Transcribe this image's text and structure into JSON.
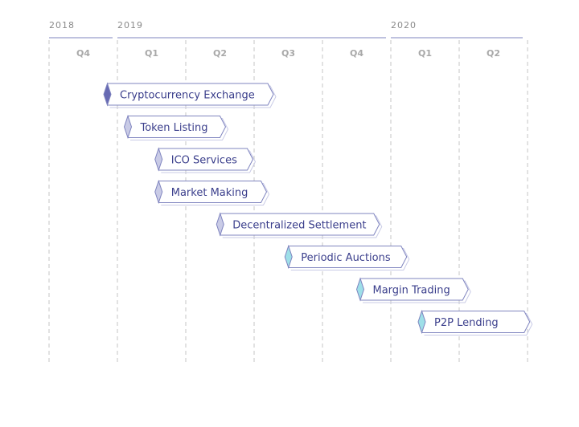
{
  "colors": {
    "text": "#3b3f8c",
    "muted": "#8a8a8a",
    "quarter_text": "#a8a8a8",
    "grid": "#c4c4c4",
    "bar_stroke": "#7f84bf",
    "bar_fill": "#ffffff",
    "diamond_dark": "#676ab3",
    "diamond_light": "#c9cbe6",
    "diamond_teal": "#9edfe8"
  },
  "years": [
    {
      "label": "2018",
      "first_quarter": 0,
      "last_quarter": 0
    },
    {
      "label": "2019",
      "first_quarter": 1,
      "last_quarter": 4
    },
    {
      "label": "2020",
      "first_quarter": 5,
      "last_quarter": 6
    }
  ],
  "quarters": [
    "Q4",
    "Q1",
    "Q2",
    "Q3",
    "Q4",
    "Q1",
    "Q2"
  ],
  "bars": [
    {
      "label": "Cryptocurrency Exchange",
      "start": 0.8,
      "end": 3.2,
      "diamond": "dark"
    },
    {
      "label": "Token Listing",
      "start": 1.1,
      "end": 2.5,
      "diamond": "light"
    },
    {
      "label": "ICO Services",
      "start": 1.55,
      "end": 2.9,
      "diamond": "light"
    },
    {
      "label": "Market Making",
      "start": 1.55,
      "end": 3.1,
      "diamond": "light"
    },
    {
      "label": "Decentralized Settlement",
      "start": 2.45,
      "end": 4.75,
      "diamond": "light"
    },
    {
      "label": "Periodic Auctions",
      "start": 3.45,
      "end": 5.15,
      "diamond": "teal"
    },
    {
      "label": "Margin Trading",
      "start": 4.5,
      "end": 6.05,
      "diamond": "teal"
    },
    {
      "label": "P2P Lending",
      "start": 5.4,
      "end": 6.95,
      "diamond": "teal"
    }
  ]
}
